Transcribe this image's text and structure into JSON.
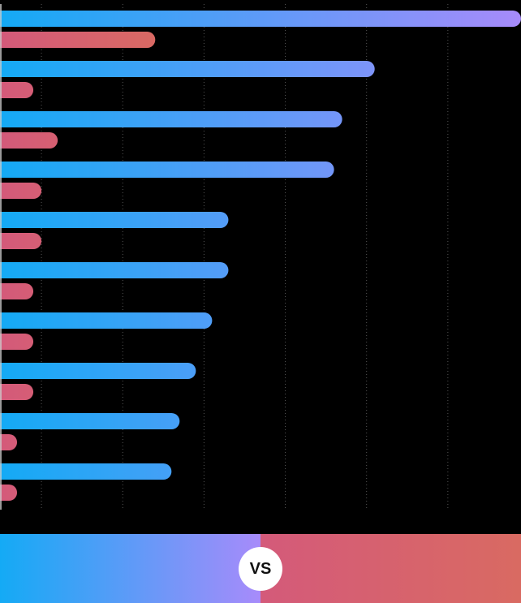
{
  "chart_data": {
    "type": "bar",
    "orientation": "horizontal",
    "grid": true,
    "xlim": [
      0,
      640
    ],
    "colors": {
      "series_a_start": "#14aaf5",
      "series_a_end": "#a78bfa",
      "series_b_start": "#d45a7a",
      "series_b_end": "#d96a62",
      "gridline": "#555555",
      "background": "#000000"
    },
    "series": [
      {
        "values": [
          640,
          460,
          420,
          410,
          280,
          280,
          260,
          240,
          220,
          210
        ]
      },
      {
        "values": [
          190,
          40,
          70,
          50,
          50,
          40,
          40,
          40,
          20,
          20
        ]
      }
    ]
  },
  "footer": {
    "vs_label": "VS"
  }
}
